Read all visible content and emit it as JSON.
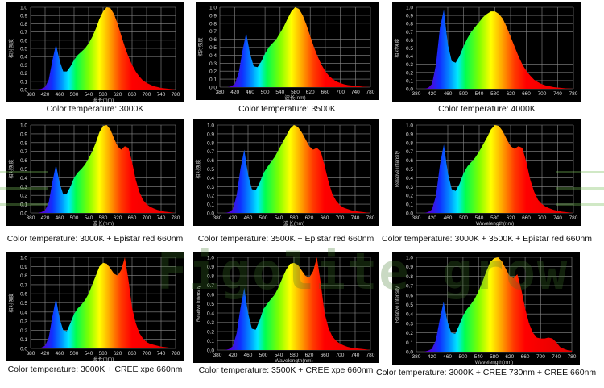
{
  "watermark": "Figolite grow",
  "chart_data": [
    {
      "type": "area",
      "caption": "Color temperature: 3000K",
      "ylabel": "相对强度",
      "xlabel": "波长(nm)",
      "x_ticks": [
        380,
        420,
        460,
        500,
        540,
        580,
        620,
        660,
        700,
        740,
        780
      ],
      "y_ticks": [
        0.0,
        0.1,
        0.2,
        0.3,
        0.4,
        0.5,
        0.6,
        0.7,
        0.8,
        0.9,
        1.0
      ],
      "xlim": [
        380,
        780
      ],
      "ylim": [
        0,
        1
      ],
      "grid": true,
      "x_step": 10,
      "values": [
        0,
        0,
        0,
        0.01,
        0.03,
        0.12,
        0.35,
        0.55,
        0.35,
        0.22,
        0.22,
        0.28,
        0.36,
        0.42,
        0.46,
        0.5,
        0.56,
        0.64,
        0.74,
        0.86,
        0.95,
        1.0,
        0.99,
        0.92,
        0.8,
        0.66,
        0.52,
        0.4,
        0.3,
        0.22,
        0.16,
        0.11,
        0.08,
        0.06,
        0.04,
        0.03,
        0.02,
        0.015,
        0.01,
        0.005,
        0
      ]
    },
    {
      "type": "area",
      "caption": "Color temperature: 3500K",
      "ylabel": "相对强度",
      "xlabel": "波长(nm)",
      "x_ticks": [
        380,
        420,
        460,
        500,
        540,
        580,
        620,
        660,
        700,
        740,
        780
      ],
      "y_ticks": [
        0.0,
        0.1,
        0.2,
        0.3,
        0.4,
        0.5,
        0.6,
        0.7,
        0.8,
        0.9,
        1.0
      ],
      "xlim": [
        380,
        780
      ],
      "ylim": [
        0,
        1
      ],
      "grid": true,
      "x_step": 10,
      "values": [
        0,
        0,
        0,
        0.01,
        0.04,
        0.18,
        0.45,
        0.68,
        0.42,
        0.26,
        0.25,
        0.32,
        0.42,
        0.5,
        0.55,
        0.6,
        0.68,
        0.76,
        0.86,
        0.95,
        1.0,
        0.98,
        0.9,
        0.78,
        0.64,
        0.5,
        0.38,
        0.28,
        0.2,
        0.14,
        0.1,
        0.07,
        0.05,
        0.035,
        0.025,
        0.02,
        0.015,
        0.01,
        0.005,
        0.003,
        0
      ]
    },
    {
      "type": "area",
      "caption": "Color temperature: 4000K",
      "ylabel": "相对强度",
      "xlabel": "",
      "x_ticks": [
        380,
        420,
        460,
        500,
        540,
        580,
        620,
        660,
        700,
        740,
        780
      ],
      "y_ticks": [
        0.0,
        0.1,
        0.2,
        0.3,
        0.4,
        0.5,
        0.6,
        0.7,
        0.8,
        0.9,
        1.0
      ],
      "xlim": [
        380,
        780
      ],
      "ylim": [
        0,
        1
      ],
      "grid": true,
      "x_step": 10,
      "values": [
        0,
        0,
        0,
        0.01,
        0.06,
        0.3,
        0.75,
        0.97,
        0.55,
        0.34,
        0.32,
        0.4,
        0.52,
        0.62,
        0.7,
        0.76,
        0.82,
        0.88,
        0.92,
        0.95,
        0.95,
        0.92,
        0.86,
        0.76,
        0.64,
        0.52,
        0.4,
        0.3,
        0.22,
        0.16,
        0.11,
        0.08,
        0.055,
        0.04,
        0.03,
        0.02,
        0.015,
        0.01,
        0.005,
        0.003,
        0
      ]
    },
    {
      "type": "area",
      "caption": "Color temperature: 3000K + Epistar red 660nm",
      "ylabel": "相对强度",
      "xlabel": "波长(nm)",
      "x_ticks": [
        380,
        420,
        460,
        500,
        540,
        580,
        620,
        660,
        700,
        740,
        780
      ],
      "y_ticks": [
        0.0,
        0.1,
        0.2,
        0.3,
        0.4,
        0.5,
        0.6,
        0.7,
        0.8,
        0.9,
        1.0
      ],
      "xlim": [
        380,
        780
      ],
      "ylim": [
        0,
        1
      ],
      "grid": true,
      "x_step": 10,
      "values": [
        0,
        0,
        0,
        0.01,
        0.03,
        0.12,
        0.35,
        0.55,
        0.34,
        0.21,
        0.22,
        0.3,
        0.4,
        0.46,
        0.5,
        0.55,
        0.62,
        0.7,
        0.8,
        0.92,
        0.99,
        1.0,
        0.95,
        0.85,
        0.76,
        0.72,
        0.76,
        0.74,
        0.58,
        0.38,
        0.24,
        0.15,
        0.1,
        0.07,
        0.05,
        0.035,
        0.025,
        0.015,
        0.01,
        0.005,
        0
      ]
    },
    {
      "type": "area",
      "caption": "Color temperature: 3500K + Epistar red 660nm",
      "ylabel": "相对强度",
      "xlabel": "波长(nm)",
      "x_ticks": [
        380,
        420,
        460,
        500,
        540,
        580,
        620,
        660,
        700,
        740,
        780
      ],
      "y_ticks": [
        0.0,
        0.1,
        0.2,
        0.3,
        0.4,
        0.5,
        0.6,
        0.7,
        0.8,
        0.9,
        1.0
      ],
      "xlim": [
        380,
        780
      ],
      "ylim": [
        0,
        1
      ],
      "grid": true,
      "x_step": 10,
      "values": [
        0,
        0,
        0,
        0.01,
        0.04,
        0.2,
        0.5,
        0.72,
        0.44,
        0.27,
        0.26,
        0.34,
        0.45,
        0.52,
        0.58,
        0.64,
        0.72,
        0.8,
        0.88,
        0.96,
        1.0,
        0.98,
        0.92,
        0.84,
        0.76,
        0.72,
        0.74,
        0.7,
        0.54,
        0.36,
        0.22,
        0.14,
        0.09,
        0.06,
        0.045,
        0.03,
        0.02,
        0.015,
        0.01,
        0.005,
        0
      ]
    },
    {
      "type": "area",
      "caption": "Color temperature: 3000K + 3500K + Epistar red 660nm",
      "ylabel": "Relative intensity",
      "xlabel": "Wavelength(nm)",
      "x_ticks": [
        380,
        420,
        460,
        500,
        540,
        580,
        620,
        660,
        700,
        740,
        780
      ],
      "y_ticks": [
        0.0,
        0.1,
        0.2,
        0.3,
        0.4,
        0.5,
        0.6,
        0.7,
        0.8,
        0.9,
        1.0
      ],
      "xlim": [
        380,
        780
      ],
      "ylim": [
        0,
        1
      ],
      "grid": true,
      "x_step": 10,
      "values": [
        0,
        0,
        0,
        0.01,
        0.04,
        0.2,
        0.55,
        0.78,
        0.46,
        0.27,
        0.25,
        0.33,
        0.45,
        0.53,
        0.58,
        0.63,
        0.7,
        0.78,
        0.86,
        0.95,
        1.0,
        0.99,
        0.93,
        0.84,
        0.76,
        0.73,
        0.76,
        0.74,
        0.58,
        0.38,
        0.24,
        0.15,
        0.1,
        0.07,
        0.05,
        0.035,
        0.025,
        0.015,
        0.01,
        0.005,
        0
      ]
    },
    {
      "type": "area",
      "caption": "Color temperature: 3000K + CREE xpe 660nm",
      "ylabel": "相对强度",
      "xlabel": "波长(nm)",
      "x_ticks": [
        380,
        420,
        460,
        500,
        540,
        580,
        620,
        660,
        700,
        740,
        780
      ],
      "y_ticks": [
        0.0,
        0.1,
        0.2,
        0.3,
        0.4,
        0.5,
        0.6,
        0.7,
        0.8,
        0.9,
        1.0
      ],
      "xlim": [
        380,
        780
      ],
      "ylim": [
        0,
        1
      ],
      "grid": true,
      "x_step": 10,
      "values": [
        0,
        0,
        0,
        0.01,
        0.03,
        0.12,
        0.35,
        0.55,
        0.33,
        0.2,
        0.19,
        0.28,
        0.38,
        0.44,
        0.48,
        0.53,
        0.6,
        0.7,
        0.8,
        0.9,
        0.94,
        0.93,
        0.88,
        0.82,
        0.8,
        0.86,
        1.0,
        0.75,
        0.45,
        0.28,
        0.17,
        0.11,
        0.07,
        0.05,
        0.04,
        0.03,
        0.02,
        0.015,
        0.01,
        0.005,
        0
      ]
    },
    {
      "type": "area",
      "caption": "Color temperature: 3500K + CREE xpe 660nm",
      "ylabel": "Relative intensity",
      "xlabel": "Wavelength(nm)",
      "x_ticks": [
        380,
        420,
        460,
        500,
        540,
        580,
        620,
        660,
        700,
        740,
        780
      ],
      "y_ticks": [
        0.0,
        0.1,
        0.2,
        0.3,
        0.4,
        0.5,
        0.6,
        0.7,
        0.8,
        0.9,
        1.0
      ],
      "xlim": [
        380,
        780
      ],
      "ylim": [
        0,
        1
      ],
      "grid": true,
      "x_step": 10,
      "values": [
        0,
        0,
        0,
        0.01,
        0.04,
        0.18,
        0.45,
        0.67,
        0.4,
        0.23,
        0.22,
        0.32,
        0.44,
        0.5,
        0.55,
        0.6,
        0.68,
        0.78,
        0.87,
        0.93,
        0.94,
        0.92,
        0.86,
        0.8,
        0.78,
        0.85,
        1.0,
        0.72,
        0.4,
        0.24,
        0.15,
        0.1,
        0.07,
        0.05,
        0.035,
        0.025,
        0.02,
        0.015,
        0.01,
        0.005,
        0
      ]
    },
    {
      "type": "area",
      "caption": "Color temperature: 3000K + CREE 730nm + CREE 660nm",
      "ylabel": "Relative intensity",
      "xlabel": "Wavelength(nm)",
      "x_ticks": [
        380,
        420,
        460,
        500,
        540,
        580,
        620,
        660,
        700,
        740,
        780
      ],
      "y_ticks": [
        0.0,
        0.1,
        0.2,
        0.3,
        0.4,
        0.5,
        0.6,
        0.7,
        0.8,
        0.9,
        1.0
      ],
      "xlim": [
        380,
        780
      ],
      "ylim": [
        0,
        1
      ],
      "grid": true,
      "x_step": 10,
      "values": [
        0,
        0,
        0,
        0.01,
        0.03,
        0.12,
        0.34,
        0.53,
        0.32,
        0.2,
        0.19,
        0.28,
        0.38,
        0.45,
        0.5,
        0.56,
        0.64,
        0.74,
        0.85,
        0.95,
        0.99,
        1.0,
        0.96,
        0.88,
        0.8,
        0.78,
        0.82,
        0.66,
        0.46,
        0.3,
        0.2,
        0.15,
        0.14,
        0.14,
        0.15,
        0.14,
        0.1,
        0.05,
        0.03,
        0.015,
        0.01
      ]
    }
  ]
}
